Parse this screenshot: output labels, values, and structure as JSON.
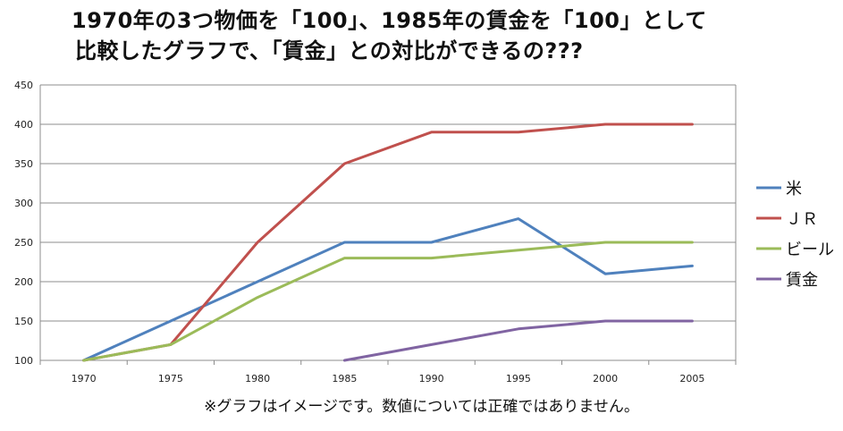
{
  "title": {
    "line1": "1970年の3つ物価を「100」、1985年の賃金を「100」として",
    "line2": "比較したグラフで、「賃金」との対比ができるの???"
  },
  "footnote": "※グラフはイメージです。数値については正確ではありません。",
  "chart_data": {
    "type": "line",
    "x": [
      "1970",
      "1975",
      "1980",
      "1985",
      "1990",
      "1995",
      "2000",
      "2005"
    ],
    "ylim": [
      100,
      450
    ],
    "yticks": [
      100,
      150,
      200,
      250,
      300,
      350,
      400,
      450
    ],
    "grid": true,
    "legend_position": "right",
    "series": [
      {
        "name": "米",
        "color": "#4f81bd",
        "values": [
          100,
          150,
          200,
          250,
          250,
          280,
          210,
          220
        ]
      },
      {
        "name": "ＪＲ",
        "color": "#c0504d",
        "values": [
          100,
          120,
          250,
          350,
          390,
          390,
          400,
          400
        ]
      },
      {
        "name": "ビール",
        "color": "#9bbb59",
        "values": [
          100,
          120,
          180,
          230,
          230,
          240,
          250,
          250
        ]
      },
      {
        "name": "賃金",
        "color": "#8064a2",
        "values": [
          null,
          null,
          null,
          100,
          120,
          140,
          150,
          150
        ]
      }
    ]
  }
}
